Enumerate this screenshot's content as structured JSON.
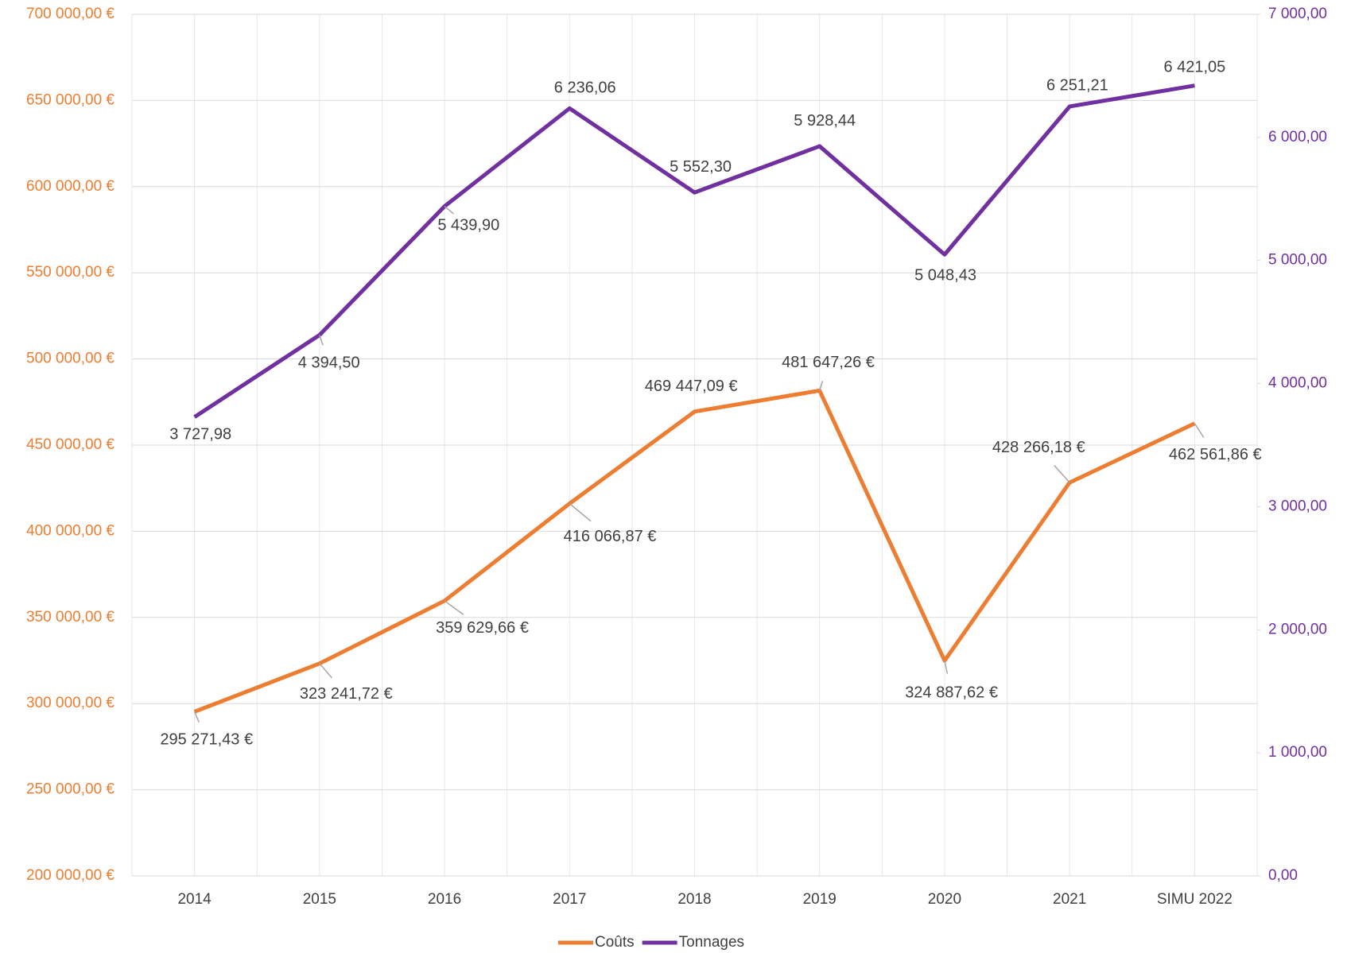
{
  "chart_data": {
    "type": "line",
    "categories": [
      "2014",
      "2015",
      "2016",
      "2017",
      "2018",
      "2019",
      "2020",
      "2021",
      "SIMU 2022"
    ],
    "series": [
      {
        "name": "Coûts",
        "color": "#ED7D31",
        "axis": "y",
        "values": [
          295271.43,
          323241.72,
          359629.66,
          416066.87,
          469447.09,
          481647.26,
          324887.62,
          428266.18,
          462561.86
        ],
        "value_labels": [
          "295 271,43 €",
          "323 241,72 €",
          "359 629,66 €",
          "416 066,87 €",
          "469 447,09 €",
          "481 647,26 €",
          "324 887,62 €",
          "428 266,18 €",
          "462 561,86 €"
        ]
      },
      {
        "name": "Tonnages",
        "color": "#7030A0",
        "axis": "y2",
        "values": [
          3727.98,
          4394.5,
          5439.9,
          6236.06,
          5552.3,
          5928.44,
          5048.43,
          6251.21,
          6421.05
        ],
        "value_labels": [
          "3 727,98",
          "4 394,50",
          "5 439,90",
          "6 236,06",
          "5 552,30",
          "5 928,44",
          "5 048,43",
          "6 251,21",
          "6 421,05"
        ]
      }
    ],
    "ylim": [
      200000,
      700000
    ],
    "yticks": [
      {
        "value": 200000,
        "label": "200 000,00 €"
      },
      {
        "value": 250000,
        "label": "250 000,00 €"
      },
      {
        "value": 300000,
        "label": "300 000,00 €"
      },
      {
        "value": 350000,
        "label": "350 000,00 €"
      },
      {
        "value": 400000,
        "label": "400 000,00 €"
      },
      {
        "value": 450000,
        "label": "450 000,00 €"
      },
      {
        "value": 500000,
        "label": "500 000,00 €"
      },
      {
        "value": 550000,
        "label": "550 000,00 €"
      },
      {
        "value": 600000,
        "label": "600 000,00 €"
      },
      {
        "value": 650000,
        "label": "650 000,00 €"
      },
      {
        "value": 700000,
        "label": "700 000,00 €"
      }
    ],
    "y2lim": [
      0,
      7000
    ],
    "y2ticks": [
      {
        "value": 0,
        "label": "0,00"
      },
      {
        "value": 1000,
        "label": "1 000,00"
      },
      {
        "value": 2000,
        "label": "2 000,00"
      },
      {
        "value": 3000,
        "label": "3 000,00"
      },
      {
        "value": 4000,
        "label": "4 000,00"
      },
      {
        "value": 5000,
        "label": "5 000,00"
      },
      {
        "value": 6000,
        "label": "6 000,00"
      },
      {
        "value": 7000,
        "label": "7 000,00"
      }
    ],
    "grid": true,
    "legend": "bottom"
  }
}
